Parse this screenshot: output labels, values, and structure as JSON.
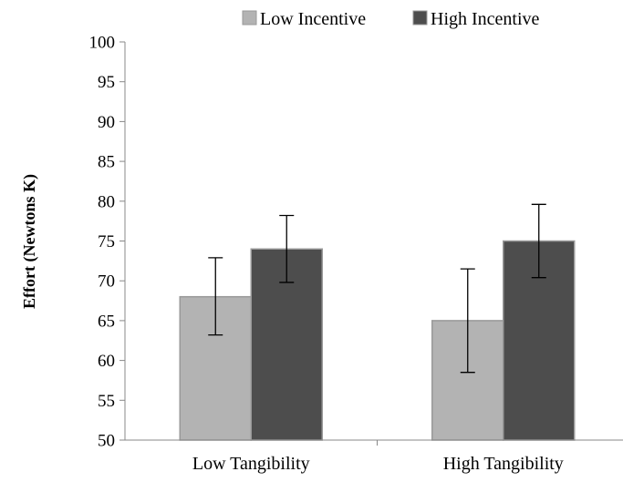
{
  "chart_data": {
    "type": "bar",
    "categories": [
      "Low Tangibility",
      "High Tangibility"
    ],
    "series": [
      {
        "name": "Low Incentive",
        "values": [
          68,
          65
        ],
        "error_low": [
          63.2,
          58.5
        ],
        "error_high": [
          72.9,
          71.5
        ],
        "color": "#b3b3b3"
      },
      {
        "name": "High Incentive",
        "values": [
          74,
          75
        ],
        "error_low": [
          69.8,
          70.4
        ],
        "error_high": [
          78.2,
          79.6
        ],
        "color": "#4d4d4d"
      }
    ],
    "ylabel": "Effort (Newtons K)",
    "xlabel": "",
    "ylim": [
      50,
      100
    ],
    "yticks": [
      "50",
      "55",
      "60",
      "65",
      "70",
      "75",
      "80",
      "85",
      "90",
      "95",
      "100"
    ],
    "grid": false,
    "legend_position": "top"
  }
}
